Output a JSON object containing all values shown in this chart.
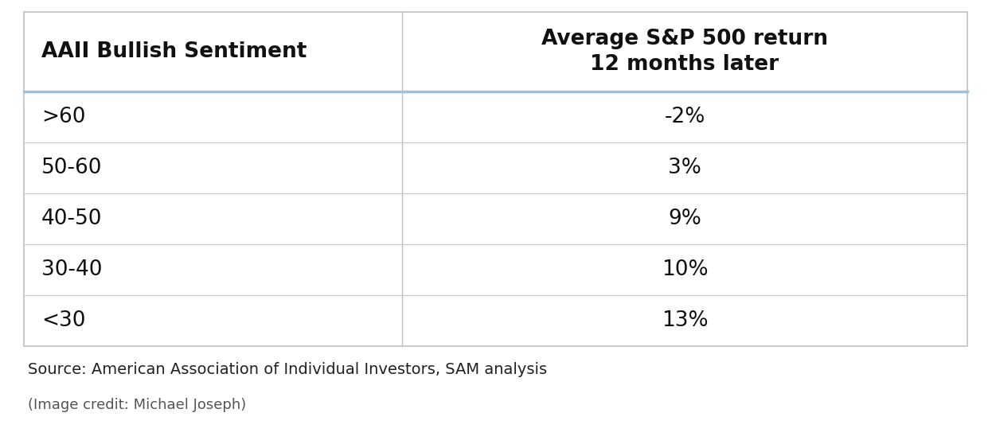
{
  "col1_header": "AAII Bullish Sentiment",
  "col2_header": "Average S&P 500 return\n12 months later",
  "rows": [
    [
      ">60",
      "-2%"
    ],
    [
      "50-60",
      "3%"
    ],
    [
      "40-50",
      "9%"
    ],
    [
      "30-40",
      "10%"
    ],
    [
      "<30",
      "13%"
    ]
  ],
  "source_text": "Source: American Association of Individual Investors, SAM analysis",
  "credit_text": "(Image credit: Michael Joseph)",
  "bg_color": "#ffffff",
  "header_separator_color": "#a8bfcf",
  "row_separator_color": "#c8c8c8",
  "outer_border_color": "#c0c0c0",
  "header_text_color": "#111111",
  "cell_text_color": "#111111",
  "source_text_color": "#222222",
  "credit_text_color": "#555555",
  "header_font_size": 19,
  "cell_font_size": 19,
  "source_font_size": 14,
  "credit_font_size": 13
}
